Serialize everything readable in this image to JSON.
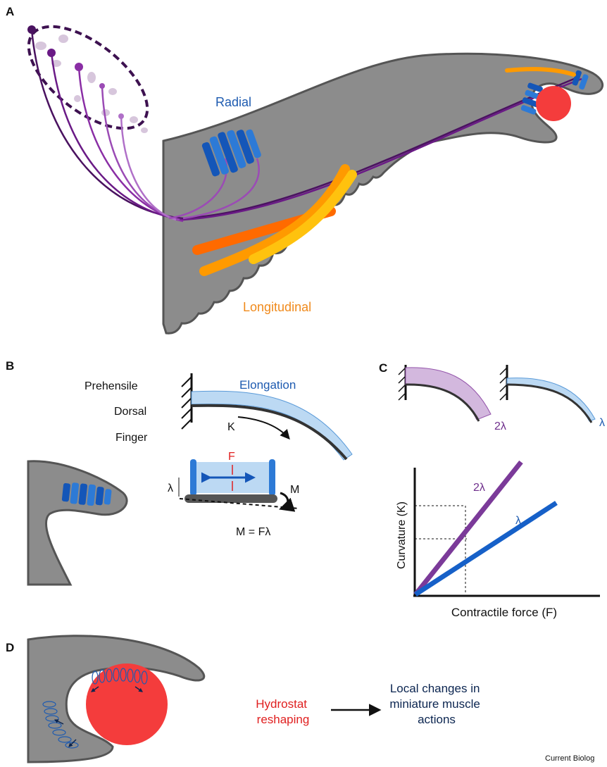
{
  "panel_a": {
    "label": "A",
    "radial": "Radial",
    "longitudinal": "Longitudinal"
  },
  "panel_b": {
    "label": "B",
    "finger_labels": [
      "Prehensile",
      "Dorsal",
      "Finger"
    ],
    "elongation": "Elongation",
    "curvature_symbol": "K",
    "force_symbol": "F",
    "lever_symbol": "λ",
    "moment_symbol": "M",
    "equation": "M = Fλ"
  },
  "panel_c": {
    "label": "C",
    "beam_left_label": "2λ",
    "beam_right_label": "λ",
    "line_2lambda": "2λ",
    "line_lambda": "λ",
    "y_axis_label": "Curvature (K)",
    "x_axis_label": "Contractile force (F)"
  },
  "panel_d": {
    "label": "D",
    "cause_lines": [
      "Hydrostat",
      "reshaping"
    ],
    "effect_lines": [
      "Local changes in",
      "miniature muscle",
      "actions"
    ]
  },
  "credit": "Current Biolog"
}
